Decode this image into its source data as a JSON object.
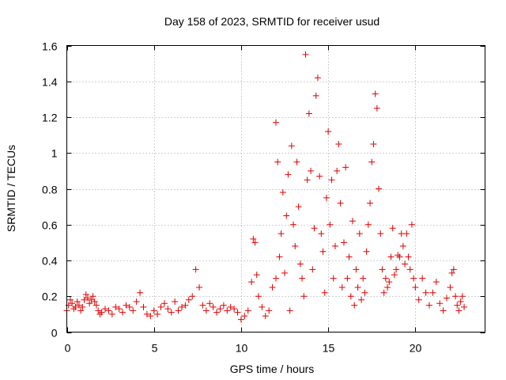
{
  "chart_data": {
    "type": "scatter",
    "title": "Day 158 of 2023, SRMTID for receiver usud",
    "xlabel": "GPS time / hours",
    "ylabel": "SRMTID / TECUs",
    "xlim": [
      0,
      24
    ],
    "ylim": [
      0,
      1.6
    ],
    "xticks": [
      0,
      5,
      10,
      15,
      20
    ],
    "yticks": [
      0,
      0.2,
      0.4,
      0.6,
      0.8,
      1,
      1.2,
      1.4,
      1.6
    ],
    "xtick_labels": [
      "0",
      "5",
      "10",
      "15",
      "20"
    ],
    "ytick_labels": [
      "0",
      "0.2",
      "0.4",
      "0.6",
      "0.8",
      "1",
      "1.2",
      "1.4",
      "1.6"
    ],
    "grid": true,
    "marker": "+",
    "series": [
      {
        "name": "SRMTID",
        "color": "#e00000",
        "points": [
          [
            0.0,
            0.12
          ],
          [
            0.1,
            0.15
          ],
          [
            0.2,
            0.18
          ],
          [
            0.3,
            0.16
          ],
          [
            0.4,
            0.13
          ],
          [
            0.5,
            0.14
          ],
          [
            0.6,
            0.17
          ],
          [
            0.7,
            0.15
          ],
          [
            0.8,
            0.12
          ],
          [
            0.9,
            0.14
          ],
          [
            1.0,
            0.18
          ],
          [
            1.1,
            0.21
          ],
          [
            1.2,
            0.19
          ],
          [
            1.3,
            0.16
          ],
          [
            1.4,
            0.18
          ],
          [
            1.5,
            0.2
          ],
          [
            1.6,
            0.17
          ],
          [
            1.7,
            0.15
          ],
          [
            1.8,
            0.12
          ],
          [
            1.9,
            0.1
          ],
          [
            2.0,
            0.11
          ],
          [
            2.2,
            0.13
          ],
          [
            2.4,
            0.12
          ],
          [
            2.6,
            0.1
          ],
          [
            2.8,
            0.14
          ],
          [
            3.0,
            0.13
          ],
          [
            3.2,
            0.11
          ],
          [
            3.4,
            0.15
          ],
          [
            3.6,
            0.14
          ],
          [
            3.8,
            0.12
          ],
          [
            4.0,
            0.17
          ],
          [
            4.2,
            0.22
          ],
          [
            4.4,
            0.14
          ],
          [
            4.6,
            0.1
          ],
          [
            4.8,
            0.09
          ],
          [
            5.0,
            0.12
          ],
          [
            5.2,
            0.1
          ],
          [
            5.4,
            0.14
          ],
          [
            5.6,
            0.16
          ],
          [
            5.8,
            0.13
          ],
          [
            6.0,
            0.11
          ],
          [
            6.2,
            0.17
          ],
          [
            6.4,
            0.12
          ],
          [
            6.6,
            0.14
          ],
          [
            6.8,
            0.15
          ],
          [
            7.0,
            0.18
          ],
          [
            7.2,
            0.2
          ],
          [
            7.4,
            0.35
          ],
          [
            7.6,
            0.25
          ],
          [
            7.8,
            0.15
          ],
          [
            8.0,
            0.12
          ],
          [
            8.2,
            0.16
          ],
          [
            8.4,
            0.14
          ],
          [
            8.6,
            0.11
          ],
          [
            8.8,
            0.13
          ],
          [
            9.0,
            0.15
          ],
          [
            9.2,
            0.12
          ],
          [
            9.4,
            0.14
          ],
          [
            9.6,
            0.13
          ],
          [
            9.8,
            0.11
          ],
          [
            10.0,
            0.07
          ],
          [
            10.2,
            0.09
          ],
          [
            10.4,
            0.12
          ],
          [
            10.6,
            0.28
          ],
          [
            10.7,
            0.52
          ],
          [
            10.8,
            0.5
          ],
          [
            10.9,
            0.32
          ],
          [
            11.0,
            0.2
          ],
          [
            11.2,
            0.14
          ],
          [
            11.4,
            0.09
          ],
          [
            11.6,
            0.12
          ],
          [
            11.8,
            0.25
          ],
          [
            12.0,
            0.3
          ],
          [
            12.0,
            1.17
          ],
          [
            12.1,
            0.95
          ],
          [
            12.2,
            0.42
          ],
          [
            12.3,
            0.55
          ],
          [
            12.4,
            0.78
          ],
          [
            12.5,
            0.33
          ],
          [
            12.6,
            0.65
          ],
          [
            12.7,
            0.88
          ],
          [
            12.8,
            0.12
          ],
          [
            12.9,
            1.04
          ],
          [
            13.0,
            0.6
          ],
          [
            13.1,
            0.48
          ],
          [
            13.2,
            0.95
          ],
          [
            13.3,
            0.7
          ],
          [
            13.4,
            0.38
          ],
          [
            13.5,
            0.3
          ],
          [
            13.6,
            0.2
          ],
          [
            13.7,
            1.55
          ],
          [
            13.8,
            0.85
          ],
          [
            13.9,
            1.22
          ],
          [
            14.0,
            0.9
          ],
          [
            14.1,
            0.35
          ],
          [
            14.2,
            0.58
          ],
          [
            14.3,
            1.32
          ],
          [
            14.4,
            1.42
          ],
          [
            14.5,
            0.87
          ],
          [
            14.6,
            0.55
          ],
          [
            14.7,
            0.45
          ],
          [
            14.8,
            0.22
          ],
          [
            14.9,
            0.75
          ],
          [
            15.0,
            1.12
          ],
          [
            15.1,
            0.6
          ],
          [
            15.2,
            0.85
          ],
          [
            15.3,
            0.3
          ],
          [
            15.4,
            0.48
          ],
          [
            15.5,
            0.9
          ],
          [
            15.6,
            1.05
          ],
          [
            15.7,
            0.72
          ],
          [
            15.8,
            0.25
          ],
          [
            15.9,
            0.5
          ],
          [
            16.0,
            0.92
          ],
          [
            16.1,
            0.3
          ],
          [
            16.2,
            0.42
          ],
          [
            16.3,
            0.2
          ],
          [
            16.4,
            0.62
          ],
          [
            16.5,
            0.15
          ],
          [
            16.6,
            0.35
          ],
          [
            16.7,
            0.25
          ],
          [
            16.8,
            0.55
          ],
          [
            16.9,
            0.18
          ],
          [
            17.0,
            0.3
          ],
          [
            17.1,
            0.22
          ],
          [
            17.2,
            0.45
          ],
          [
            17.3,
            0.6
          ],
          [
            17.4,
            0.72
          ],
          [
            17.5,
            0.95
          ],
          [
            17.6,
            1.05
          ],
          [
            17.7,
            1.33
          ],
          [
            17.8,
            1.25
          ],
          [
            17.9,
            0.8
          ],
          [
            18.0,
            0.55
          ],
          [
            18.1,
            0.35
          ],
          [
            18.2,
            0.22
          ],
          [
            18.3,
            0.3
          ],
          [
            18.4,
            0.25
          ],
          [
            18.5,
            0.28
          ],
          [
            18.6,
            0.42
          ],
          [
            18.7,
            0.58
          ],
          [
            18.8,
            0.32
          ],
          [
            18.9,
            0.35
          ],
          [
            19.0,
            0.43
          ],
          [
            19.1,
            0.42
          ],
          [
            19.2,
            0.55
          ],
          [
            19.3,
            0.48
          ],
          [
            19.4,
            0.38
          ],
          [
            19.5,
            0.55
          ],
          [
            19.6,
            0.42
          ],
          [
            19.7,
            0.35
          ],
          [
            19.8,
            0.6
          ],
          [
            19.9,
            0.3
          ],
          [
            20.0,
            0.25
          ],
          [
            20.2,
            0.18
          ],
          [
            20.4,
            0.3
          ],
          [
            20.6,
            0.22
          ],
          [
            20.8,
            0.15
          ],
          [
            21.0,
            0.22
          ],
          [
            21.2,
            0.28
          ],
          [
            21.4,
            0.16
          ],
          [
            21.6,
            0.12
          ],
          [
            21.8,
            0.19
          ],
          [
            22.0,
            0.25
          ],
          [
            22.1,
            0.33
          ],
          [
            22.2,
            0.35
          ],
          [
            22.3,
            0.2
          ],
          [
            22.4,
            0.15
          ],
          [
            22.5,
            0.12
          ],
          [
            22.6,
            0.17
          ],
          [
            22.7,
            0.2
          ],
          [
            22.8,
            0.14
          ]
        ]
      }
    ]
  }
}
